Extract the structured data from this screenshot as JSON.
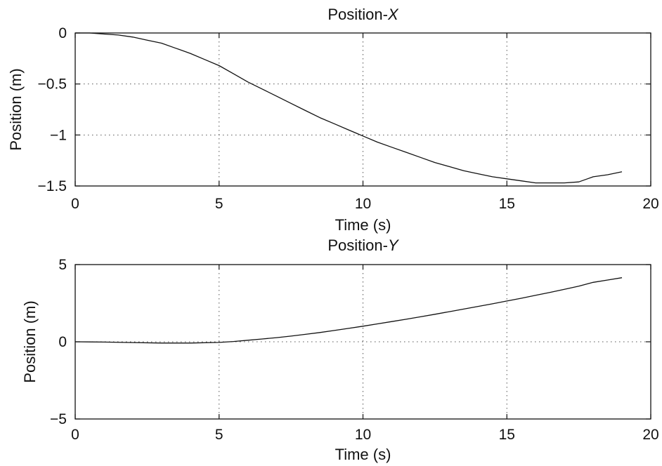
{
  "chart_data": [
    {
      "type": "line",
      "title_prefix": "Position-",
      "title_italic": "X",
      "xlabel": "Time (s)",
      "ylabel": "Position (m)",
      "xlim": [
        0,
        20
      ],
      "ylim": [
        -1.5,
        0
      ],
      "xticks": [
        "0",
        "5",
        "10",
        "15",
        "20"
      ],
      "yticks": [
        "0",
        "−0.5",
        "−1",
        "−1.5"
      ],
      "xtick_values": [
        0,
        5,
        10,
        15,
        20
      ],
      "ytick_values": [
        0,
        -0.5,
        -1,
        -1.5
      ],
      "grid": true,
      "series": [
        {
          "color": "#111111",
          "x": [
            0,
            0.5,
            1,
            1.5,
            2,
            2.5,
            3,
            3.5,
            4,
            4.5,
            5,
            5.5,
            6,
            6.5,
            7,
            7.5,
            8,
            8.5,
            9,
            9.5,
            10,
            10.5,
            11,
            11.5,
            12,
            12.5,
            13,
            13.5,
            14,
            14.5,
            15,
            15.5,
            16,
            16.5,
            17,
            17.5,
            17.8,
            18,
            18.5,
            19
          ],
          "y": [
            0,
            0,
            -0.01,
            -0.02,
            -0.04,
            -0.07,
            -0.1,
            -0.15,
            -0.2,
            -0.26,
            -0.32,
            -0.4,
            -0.48,
            -0.55,
            -0.62,
            -0.69,
            -0.76,
            -0.83,
            -0.89,
            -0.95,
            -1.01,
            -1.07,
            -1.12,
            -1.17,
            -1.22,
            -1.27,
            -1.31,
            -1.35,
            -1.38,
            -1.41,
            -1.43,
            -1.45,
            -1.47,
            -1.47,
            -1.47,
            -1.46,
            -1.43,
            -1.41,
            -1.39,
            -1.36
          ]
        }
      ]
    },
    {
      "type": "line",
      "title_prefix": "Position-",
      "title_italic": "Y",
      "xlabel": "Time (s)",
      "ylabel": "Position (m)",
      "xlim": [
        0,
        20
      ],
      "ylim": [
        -5,
        5
      ],
      "xticks": [
        "0",
        "5",
        "10",
        "15",
        "20"
      ],
      "yticks": [
        "5",
        "0",
        "−5"
      ],
      "xtick_values": [
        0,
        5,
        10,
        15,
        20
      ],
      "ytick_values": [
        5,
        0,
        -5
      ],
      "grid": true,
      "series": [
        {
          "color": "#111111",
          "x": [
            0,
            1,
            2,
            3,
            4,
            5,
            5.5,
            6,
            6.5,
            7,
            7.5,
            8,
            8.5,
            9,
            9.5,
            10,
            10.5,
            11,
            11.5,
            12,
            12.5,
            13,
            13.5,
            14,
            14.5,
            15,
            15.5,
            16,
            16.5,
            17,
            17.5,
            18,
            18.5,
            19
          ],
          "y": [
            0,
            -0.02,
            -0.05,
            -0.08,
            -0.08,
            -0.04,
            0.02,
            0.1,
            0.18,
            0.27,
            0.37,
            0.48,
            0.6,
            0.73,
            0.87,
            1.01,
            1.16,
            1.31,
            1.46,
            1.62,
            1.78,
            1.95,
            2.12,
            2.29,
            2.46,
            2.64,
            2.82,
            3.01,
            3.2,
            3.4,
            3.6,
            3.85,
            4.0,
            4.15
          ]
        }
      ]
    }
  ]
}
